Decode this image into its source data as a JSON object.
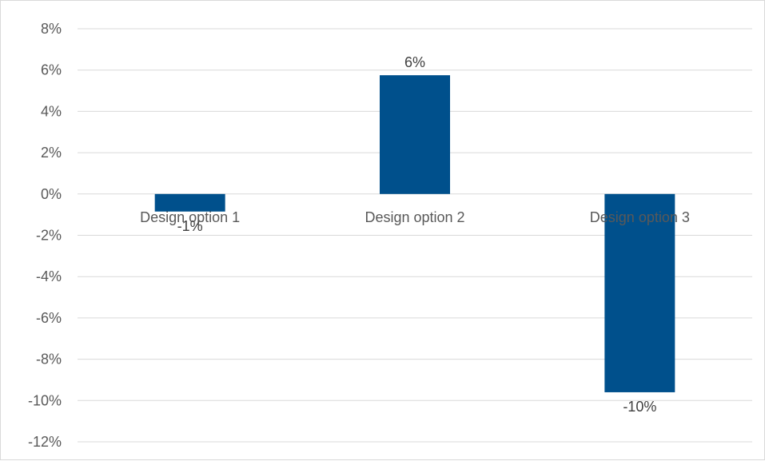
{
  "chart_data": {
    "type": "bar",
    "title": "",
    "xlabel": "",
    "ylabel": "",
    "categories": [
      "Design option 1",
      "Design option 2",
      "Design option 3"
    ],
    "values": [
      -0.85,
      5.75,
      -9.6
    ],
    "data_labels": [
      "-1%",
      "6%",
      "-10%"
    ],
    "ylim": [
      -12,
      8
    ],
    "y_ticks": [
      8,
      6,
      4,
      2,
      0,
      -2,
      -4,
      -6,
      -8,
      -10,
      -12
    ],
    "y_tick_labels": [
      "8%",
      "6%",
      "4%",
      "2%",
      "0%",
      "-2%",
      "-4%",
      "-6%",
      "-8%",
      "-10%",
      "-12%"
    ],
    "grid": true,
    "legend": "none",
    "bar_color": "#00508C",
    "grid_color": "#d9d9d9",
    "text_color": "#595959"
  }
}
